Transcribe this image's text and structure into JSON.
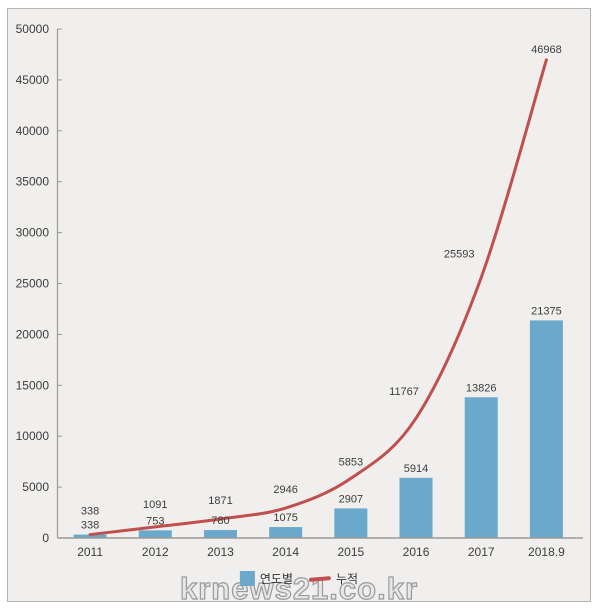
{
  "chart_data": {
    "type": "bar",
    "subtype": "bar-line-combo",
    "categories": [
      "2011",
      "2012",
      "2013",
      "2014",
      "2015",
      "2016",
      "2017",
      "2018.9"
    ],
    "series": [
      {
        "name": "연도별",
        "type": "bar",
        "color": "#6BA9CC",
        "values": [
          338,
          753,
          780,
          1075,
          2907,
          5914,
          13826,
          21375
        ]
      },
      {
        "name": "누적",
        "type": "line",
        "color": "#C0504D",
        "values": [
          338,
          1091,
          1871,
          2946,
          5853,
          11767,
          25593,
          46968
        ]
      }
    ],
    "title": "",
    "xlabel": "",
    "ylabel": "",
    "ylim": [
      0,
      50000
    ],
    "ytick_step": 5000,
    "ytick_labels": [
      "0",
      "5000",
      "10000",
      "15000",
      "20000",
      "25000",
      "30000",
      "35000",
      "40000",
      "45000",
      "50000"
    ],
    "grid": false,
    "legend_position": "bottom",
    "data_labels": true,
    "axis_color": "#9a9a9a",
    "label_color": "#3d3d3d",
    "plot_background": "#f0efed"
  },
  "legend": {
    "items": [
      {
        "label": "연도별",
        "marker": "square",
        "color": "#6BA9CC"
      },
      {
        "label": "누적",
        "marker": "line",
        "color": "#C0504D"
      }
    ]
  },
  "watermark": "krnews21.co.kr"
}
